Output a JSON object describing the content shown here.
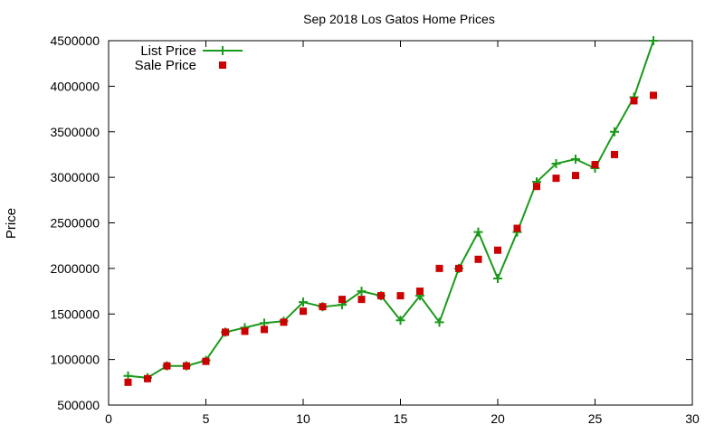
{
  "chart_data": {
    "type": "line",
    "title": "Sep 2018 Los Gatos Home Prices",
    "xlabel": "",
    "ylabel": "Price",
    "xlim": [
      0,
      30
    ],
    "ylim": [
      500000,
      4500000
    ],
    "xticks": [
      0,
      5,
      10,
      15,
      20,
      25,
      30
    ],
    "yticks": [
      500000,
      1000000,
      1500000,
      2000000,
      2500000,
      3000000,
      3500000,
      4000000,
      4500000
    ],
    "grid": false,
    "legend_position": "top-left",
    "series": [
      {
        "name": "List Price",
        "style": "line-with-plus-markers",
        "color": "#1a9a1a",
        "x": [
          1,
          2,
          3,
          4,
          5,
          6,
          7,
          8,
          9,
          10,
          11,
          12,
          13,
          14,
          15,
          16,
          17,
          18,
          19,
          20,
          21,
          22,
          23,
          24,
          25,
          26,
          27,
          28
        ],
        "values": [
          820000,
          800000,
          930000,
          930000,
          990000,
          1300000,
          1350000,
          1400000,
          1420000,
          1630000,
          1580000,
          1600000,
          1750000,
          1700000,
          1430000,
          1700000,
          1410000,
          2000000,
          2400000,
          1890000,
          2400000,
          2950000,
          3150000,
          3200000,
          3100000,
          3500000,
          3880000,
          4500000
        ]
      },
      {
        "name": "Sale Price",
        "style": "square-markers",
        "color": "#cc0000",
        "x": [
          1,
          2,
          3,
          4,
          5,
          6,
          7,
          8,
          9,
          10,
          11,
          12,
          13,
          14,
          15,
          16,
          17,
          18,
          19,
          20,
          21,
          22,
          23,
          24,
          25,
          26,
          27,
          28
        ],
        "values": [
          750000,
          790000,
          930000,
          930000,
          980000,
          1300000,
          1310000,
          1330000,
          1410000,
          1530000,
          1580000,
          1660000,
          1660000,
          1700000,
          1700000,
          1750000,
          2000000,
          2000000,
          2100000,
          2200000,
          2440000,
          2900000,
          2990000,
          3020000,
          3140000,
          3250000,
          3840000,
          3900000
        ]
      }
    ]
  }
}
